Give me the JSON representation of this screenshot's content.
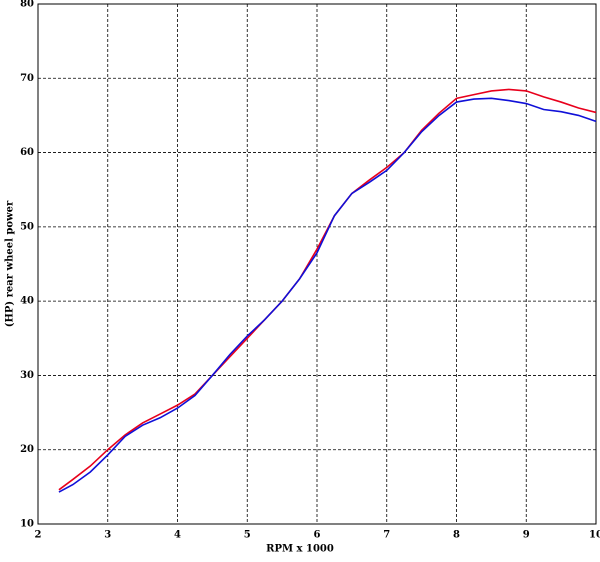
{
  "chart_data": {
    "type": "line",
    "xlabel": "RPM x 1000",
    "ylabel": "(HP) rear wheel power",
    "x": [
      2.3,
      2.5,
      2.75,
      3,
      3.25,
      3.5,
      3.75,
      4,
      4.25,
      4.5,
      4.75,
      5,
      5.25,
      5.5,
      5.75,
      6,
      6.25,
      6.5,
      6.75,
      7,
      7.25,
      7.5,
      7.75,
      8,
      8.25,
      8.5,
      8.75,
      9,
      9.25,
      9.5,
      9.75,
      10
    ],
    "series": [
      {
        "color": "#e8001c",
        "values": [
          14.6,
          16,
          17.8,
          20,
          22,
          23.6,
          24.8,
          26,
          27.5,
          30,
          32.5,
          35,
          37.5,
          40,
          43,
          47,
          51.5,
          54.5,
          56.3,
          58,
          60,
          63,
          65.3,
          67.3,
          67.8,
          68.3,
          68.5,
          68.3,
          67.5,
          66.8,
          66,
          65.4
        ]
      },
      {
        "color": "#1010d8",
        "values": [
          14.3,
          15.3,
          17,
          19.3,
          21.8,
          23.3,
          24.3,
          25.6,
          27.3,
          30,
          32.8,
          35.3,
          37.5,
          40,
          43,
          46.5,
          51.5,
          54.5,
          56,
          57.6,
          60,
          62.8,
          65,
          66.8,
          67.2,
          67.3,
          67,
          66.6,
          65.8,
          65.5,
          65,
          64.2
        ]
      }
    ],
    "xlim": [
      2,
      10
    ],
    "xticks": [
      2,
      3,
      4,
      5,
      6,
      7,
      8,
      9,
      10
    ],
    "ylim": [
      10,
      80
    ],
    "yticks": [
      10,
      20,
      30,
      40,
      50,
      60,
      70,
      80
    ],
    "grid": true
  }
}
